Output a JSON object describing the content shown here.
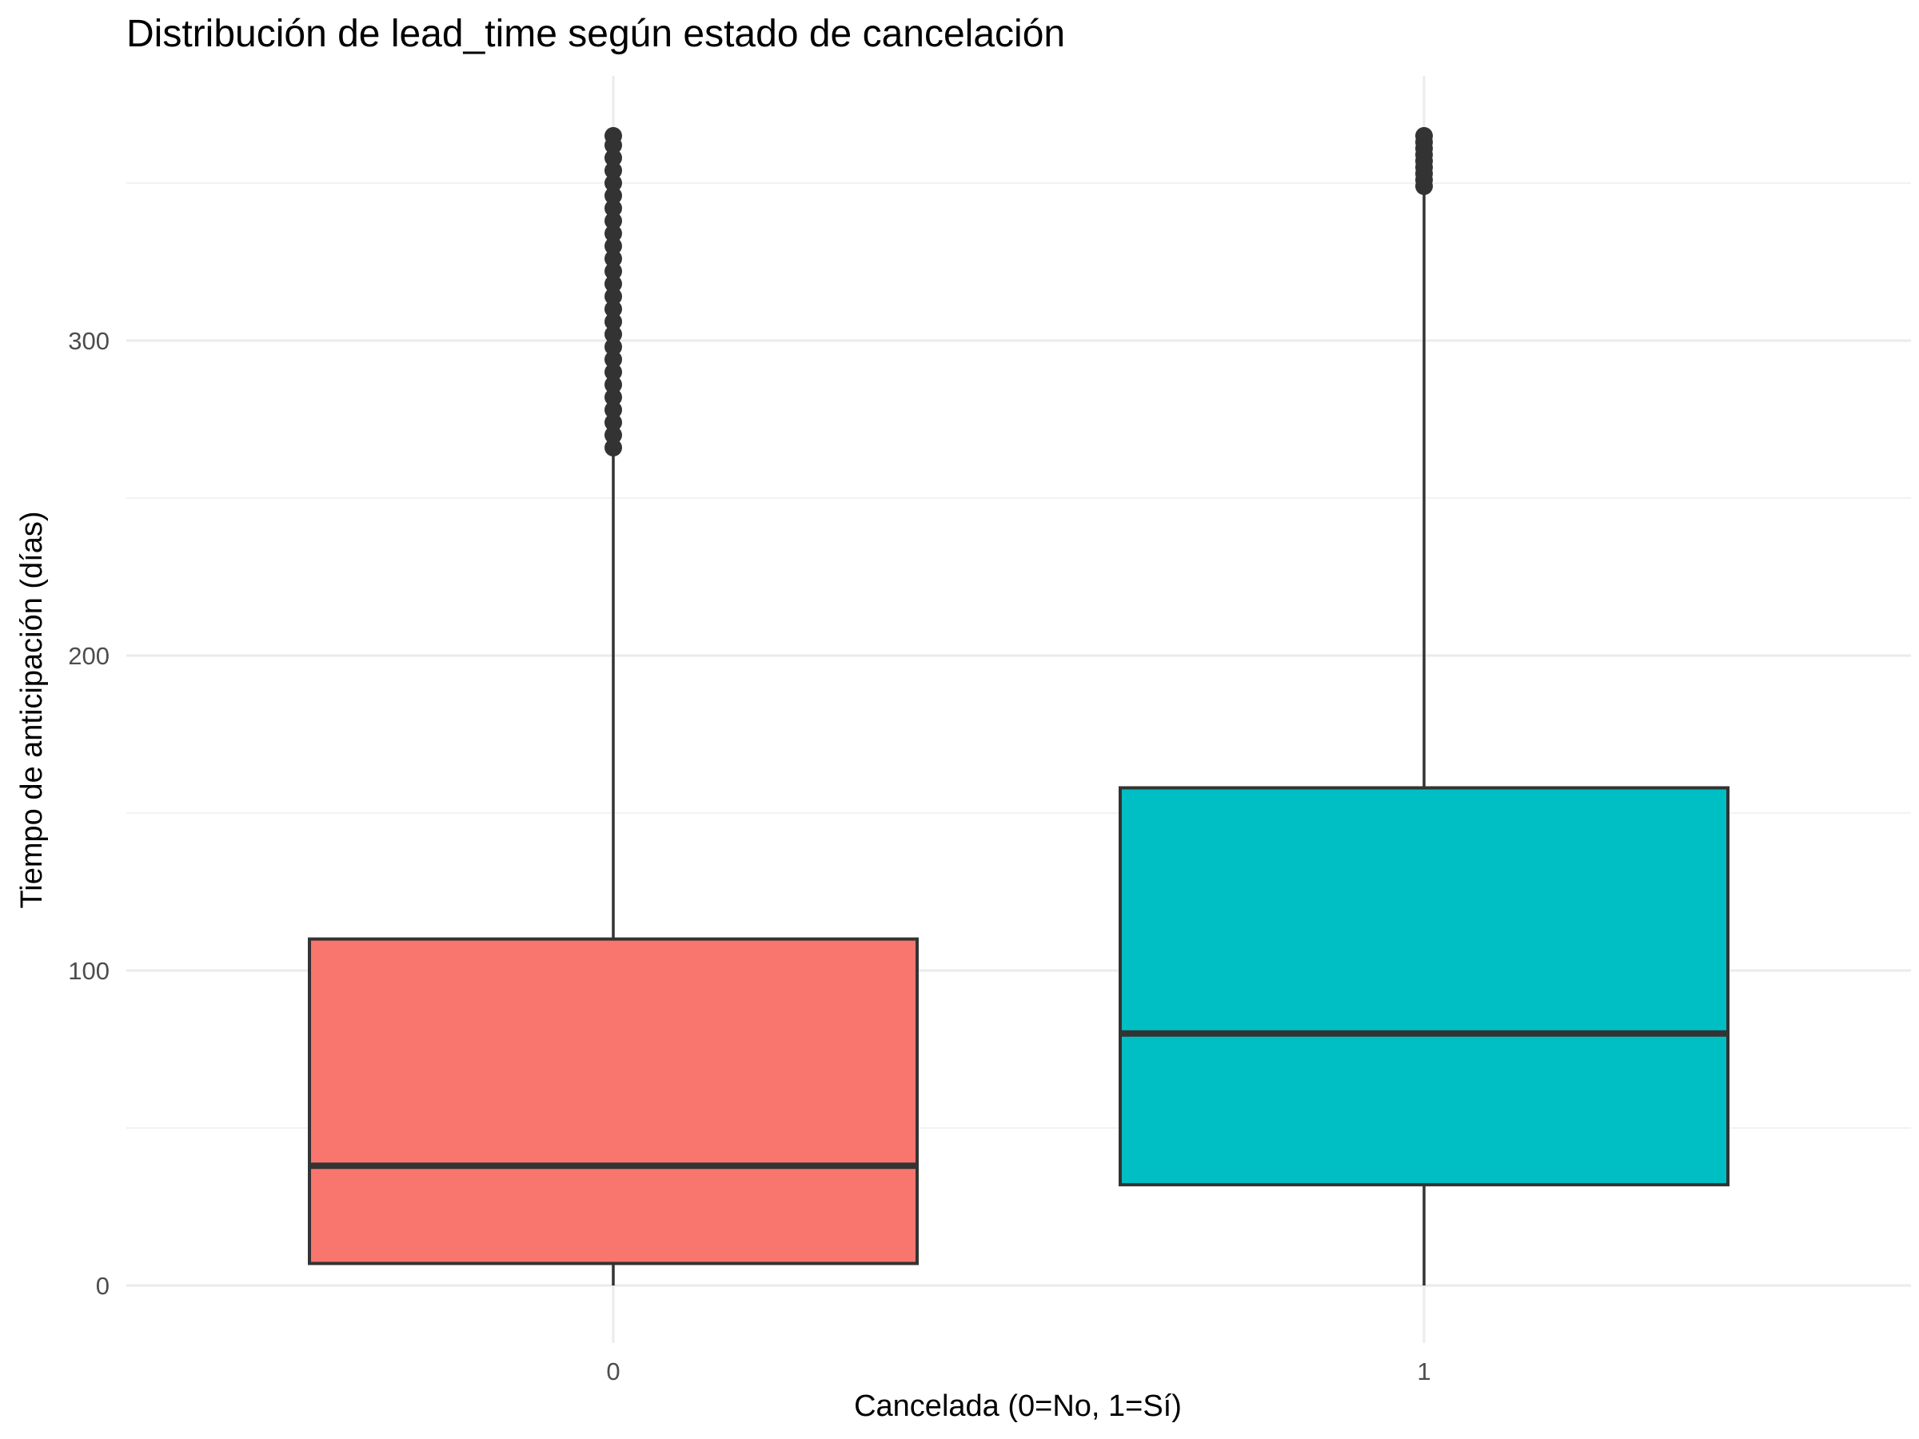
{
  "chart_data": {
    "type": "box",
    "title": "Distribución de lead_time según estado de cancelación",
    "xlabel": "Cancelada (0=No, 1=Sí)",
    "ylabel": "Tiempo de anticipación (días)",
    "ylim": [
      -18,
      385
    ],
    "y_ticks": [
      0,
      100,
      200,
      300
    ],
    "y_tick_labels": [
      "0",
      "100",
      "200",
      "300"
    ],
    "y_minor_ticks": [
      50,
      150,
      250,
      350
    ],
    "grid": true,
    "legend": "none",
    "categories": [
      "0",
      "1"
    ],
    "boxes": [
      {
        "category": "0",
        "color": "#F8766D",
        "whisker_low": 0,
        "q1": 7,
        "median": 38,
        "q3": 110,
        "whisker_high": 265,
        "outliers": [
          266,
          270,
          274,
          278,
          282,
          286,
          290,
          294,
          298,
          302,
          306,
          310,
          314,
          318,
          322,
          326,
          330,
          334,
          338,
          342,
          346,
          350,
          354,
          358,
          362,
          365
        ]
      },
      {
        "category": "1",
        "color": "#00BFC4",
        "whisker_low": 0,
        "q1": 32,
        "median": 80,
        "q3": 158,
        "whisker_high": 348,
        "outliers": [
          349,
          351,
          353,
          355,
          357,
          359,
          361,
          363,
          365
        ]
      }
    ]
  }
}
